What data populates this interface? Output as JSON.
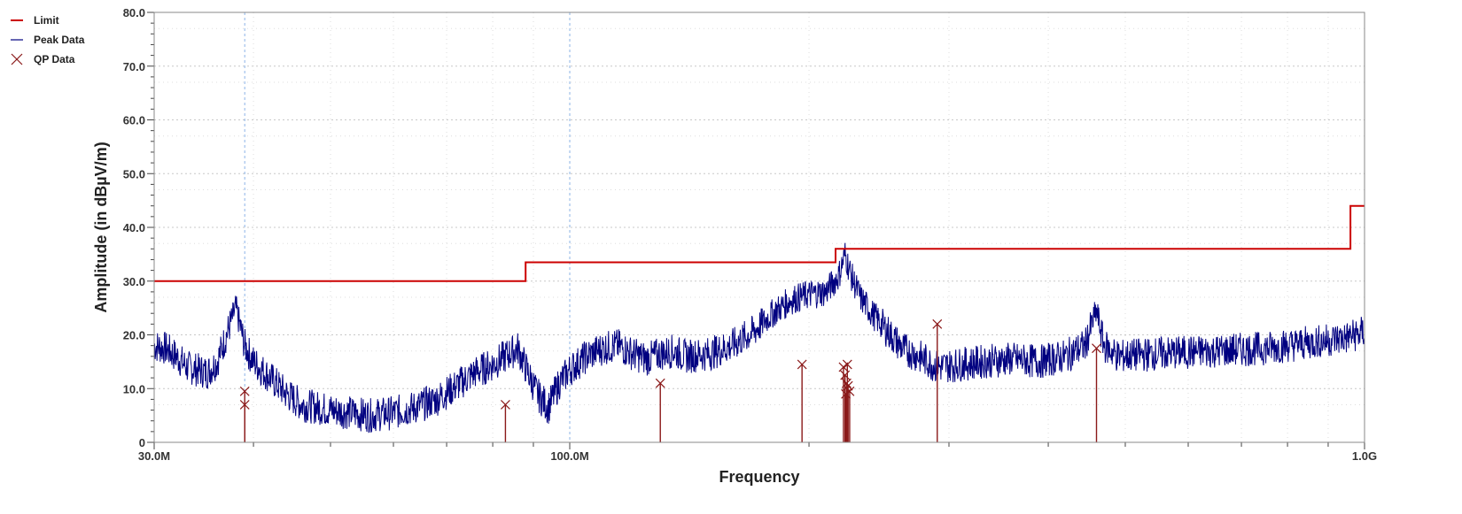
{
  "legend": {
    "items": [
      {
        "label": "Limit",
        "color": "#cc0000",
        "icon": "line-swatch"
      },
      {
        "label": "Peak Data",
        "color": "#000080",
        "icon": "line-swatch"
      },
      {
        "label": "QP Data",
        "color": "#8b1a1a",
        "icon": "x-marker"
      }
    ]
  },
  "chart_data": {
    "type": "line",
    "title": "",
    "xlabel": "Frequency",
    "ylabel": "Amplitude (in dBµV/m)",
    "x_scale": "log",
    "xlim": [
      30000000,
      1000000000
    ],
    "ylim": [
      0,
      80
    ],
    "grid": true,
    "legend_position": "top-left outside",
    "x_tick_labels": [
      {
        "value": 30000000,
        "label": "30.0M"
      },
      {
        "value": 100000000,
        "label": "100.0M"
      },
      {
        "value": 1000000000,
        "label": "1.0G"
      }
    ],
    "y_ticks": [
      0,
      10,
      20,
      30,
      40,
      50,
      60,
      70,
      80
    ],
    "y_tick_labels": [
      "0",
      "10.0",
      "20.0",
      "30.0",
      "40.0",
      "50.0",
      "60.0",
      "70.0",
      "80.0"
    ],
    "colors": {
      "limit": "#cc0000",
      "peak": "#000080",
      "qp": "#8b1a1a",
      "grid": "#c8c8c8",
      "marker_line": "#8cb4e6"
    },
    "series": [
      {
        "name": "Limit",
        "points": [
          [
            30000000,
            30.0
          ],
          [
            88000000,
            30.0
          ],
          [
            88000000,
            33.5
          ],
          [
            216000000,
            33.5
          ],
          [
            216000000,
            36.0
          ],
          [
            960000000,
            36.0
          ],
          [
            960000000,
            44.0
          ],
          [
            1000000000,
            44.0
          ]
        ]
      },
      {
        "name": "Peak Data",
        "points": [
          [
            30000000,
            18.0
          ],
          [
            31000000,
            17.5
          ],
          [
            32000000,
            16.0
          ],
          [
            33000000,
            14.0
          ],
          [
            34000000,
            13.5
          ],
          [
            35000000,
            13.0
          ],
          [
            36000000,
            15.0
          ],
          [
            37000000,
            20.0
          ],
          [
            38000000,
            25.0
          ],
          [
            39000000,
            18.0
          ],
          [
            40000000,
            15.0
          ],
          [
            42000000,
            12.0
          ],
          [
            44000000,
            9.0
          ],
          [
            46000000,
            7.0
          ],
          [
            48000000,
            6.5
          ],
          [
            50000000,
            6.0
          ],
          [
            53000000,
            5.5
          ],
          [
            56000000,
            5.0
          ],
          [
            60000000,
            5.5
          ],
          [
            64000000,
            6.5
          ],
          [
            68000000,
            8.0
          ],
          [
            72000000,
            10.5
          ],
          [
            76000000,
            13.0
          ],
          [
            80000000,
            14.5
          ],
          [
            84000000,
            16.5
          ],
          [
            86000000,
            17.5
          ],
          [
            88000000,
            14.0
          ],
          [
            91000000,
            9.0
          ],
          [
            94000000,
            6.5
          ],
          [
            97000000,
            11.0
          ],
          [
            100000000,
            13.5
          ],
          [
            105000000,
            16.0
          ],
          [
            110000000,
            17.5
          ],
          [
            115000000,
            18.0
          ],
          [
            120000000,
            16.5
          ],
          [
            125000000,
            15.5
          ],
          [
            130000000,
            16.5
          ],
          [
            135000000,
            17.0
          ],
          [
            140000000,
            16.0
          ],
          [
            150000000,
            16.5
          ],
          [
            160000000,
            18.0
          ],
          [
            170000000,
            20.5
          ],
          [
            180000000,
            24.0
          ],
          [
            190000000,
            26.5
          ],
          [
            200000000,
            27.5
          ],
          [
            210000000,
            28.0
          ],
          [
            218000000,
            31.0
          ],
          [
            222000000,
            35.0
          ],
          [
            226000000,
            31.0
          ],
          [
            232000000,
            27.0
          ],
          [
            240000000,
            24.0
          ],
          [
            250000000,
            21.0
          ],
          [
            262000000,
            17.5
          ],
          [
            275000000,
            16.0
          ],
          [
            290000000,
            14.0
          ],
          [
            310000000,
            14.5
          ],
          [
            330000000,
            15.0
          ],
          [
            360000000,
            15.5
          ],
          [
            390000000,
            15.0
          ],
          [
            420000000,
            16.0
          ],
          [
            445000000,
            18.0
          ],
          [
            460000000,
            24.5
          ],
          [
            470000000,
            18.0
          ],
          [
            490000000,
            16.0
          ],
          [
            550000000,
            16.5
          ],
          [
            650000000,
            17.0
          ],
          [
            750000000,
            17.5
          ],
          [
            850000000,
            18.5
          ],
          [
            950000000,
            19.5
          ],
          [
            1000000000,
            20.5
          ]
        ]
      },
      {
        "name": "QP Data",
        "points": [
          [
            39000000,
            9.5
          ],
          [
            39000000,
            7.0
          ],
          [
            83000000,
            7.0
          ],
          [
            130000000,
            11.0
          ],
          [
            196000000,
            14.5
          ],
          [
            221000000,
            14.0
          ],
          [
            222000000,
            12.5
          ],
          [
            223000000,
            11.0
          ],
          [
            224000000,
            10.5
          ],
          [
            225000000,
            9.5
          ],
          [
            222500000,
            9.0
          ],
          [
            223500000,
            14.5
          ],
          [
            290000000,
            22.0
          ],
          [
            460000000,
            17.5
          ]
        ]
      }
    ],
    "marker_lines_x": [
      39000000,
      100000000
    ]
  }
}
